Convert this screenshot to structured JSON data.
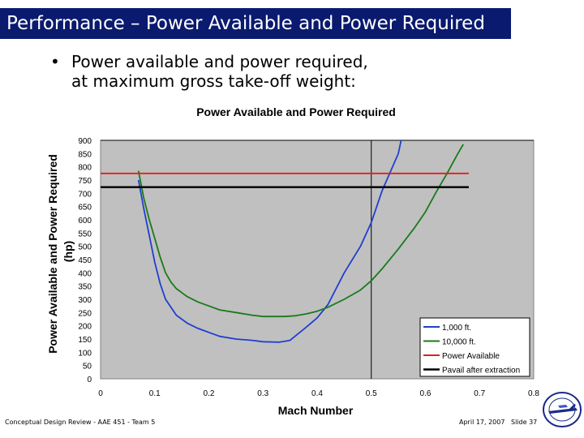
{
  "slide": {
    "title": "Performance – Power Available and Power Required",
    "bullet_marker": "•",
    "bullet_line1": "Power available and power required,",
    "bullet_line2": "at maximum gross take-off weight:",
    "footer_left": "Conceptual Design Review - AAE 451 - Team 5",
    "footer_date": "April 17, 2007",
    "footer_slide": "Slide 37"
  },
  "chart_data": {
    "type": "line",
    "title": "Power Available and Power Required",
    "xlabel": "Mach Number",
    "ylabel_line1": "Power Available and Power Required",
    "ylabel_line2": "(hp)",
    "xlim": [
      0,
      0.8
    ],
    "ylim": [
      0,
      900
    ],
    "x_ticks": [
      "0",
      "0.1",
      "0.2",
      "0.3",
      "0.4",
      "0.5",
      "0.6",
      "0.7",
      "0.8"
    ],
    "y_ticks": [
      "0",
      "50",
      "100",
      "150",
      "200",
      "250",
      "300",
      "350",
      "400",
      "450",
      "500",
      "550",
      "600",
      "650",
      "700",
      "750",
      "800",
      "850",
      "900"
    ],
    "grid": "x and y at 0.5 and 900 only",
    "legend_position": "bottom-right",
    "plot_background": "#c0c0c0",
    "series": [
      {
        "name": "1,000 ft.",
        "color": "#1f3fd0",
        "x": [
          0.07,
          0.08,
          0.09,
          0.1,
          0.11,
          0.12,
          0.14,
          0.16,
          0.18,
          0.2,
          0.22,
          0.25,
          0.28,
          0.3,
          0.33,
          0.35,
          0.38,
          0.4,
          0.42,
          0.45,
          0.48,
          0.5,
          0.52,
          0.55,
          0.555
        ],
        "y": [
          750,
          640,
          540,
          440,
          360,
          300,
          240,
          210,
          190,
          175,
          160,
          150,
          145,
          140,
          138,
          145,
          195,
          230,
          280,
          400,
          500,
          590,
          710,
          850,
          900
        ]
      },
      {
        "name": "10,000 ft.",
        "color": "#1a7a1a",
        "x": [
          0.07,
          0.08,
          0.09,
          0.1,
          0.11,
          0.12,
          0.13,
          0.14,
          0.16,
          0.18,
          0.2,
          0.22,
          0.25,
          0.28,
          0.3,
          0.32,
          0.34,
          0.36,
          0.38,
          0.4,
          0.42,
          0.45,
          0.48,
          0.5,
          0.52,
          0.55,
          0.58,
          0.6,
          0.62,
          0.64,
          0.66,
          0.67
        ],
        "y": [
          785,
          680,
          600,
          530,
          460,
          400,
          365,
          340,
          310,
          290,
          275,
          260,
          250,
          240,
          235,
          235,
          235,
          238,
          245,
          255,
          270,
          300,
          335,
          370,
          415,
          490,
          570,
          630,
          705,
          775,
          850,
          885
        ]
      },
      {
        "name": "Power Available",
        "color": "#e02020",
        "x": [
          0.0,
          0.68
        ],
        "y": [
          775,
          775
        ]
      },
      {
        "name": "Pavail after extraction",
        "color": "#000000",
        "x": [
          0.0,
          0.68
        ],
        "y": [
          723,
          723
        ]
      }
    ]
  }
}
